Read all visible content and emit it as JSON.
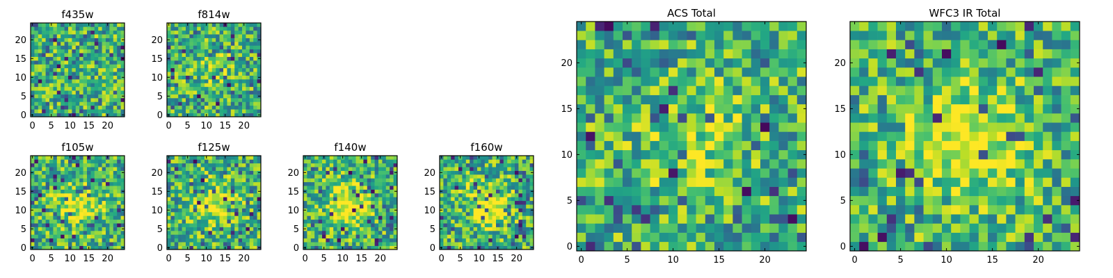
{
  "chart_data": [
    {
      "type": "heatmap",
      "title": "f435w",
      "x_ticks": [
        "0",
        "5",
        "10",
        "15",
        "20"
      ],
      "y_ticks": [
        "0",
        "5",
        "10",
        "15",
        "20"
      ],
      "xlim": [
        -0.5,
        24.5
      ],
      "ylim": [
        -0.5,
        24.5
      ],
      "grid_size": [
        25,
        25
      ],
      "colormap": "viridis",
      "seed": 11,
      "center_strength": 0.0
    },
    {
      "type": "heatmap",
      "title": "f814w",
      "x_ticks": [
        "0",
        "5",
        "10",
        "15",
        "20"
      ],
      "y_ticks": [
        "0",
        "5",
        "10",
        "15",
        "20"
      ],
      "xlim": [
        -0.5,
        24.5
      ],
      "ylim": [
        -0.5,
        24.5
      ],
      "grid_size": [
        25,
        25
      ],
      "colormap": "viridis",
      "seed": 23,
      "center_strength": 0.15
    },
    {
      "type": "heatmap",
      "title": "f105w",
      "x_ticks": [
        "0",
        "5",
        "10",
        "15",
        "20"
      ],
      "y_ticks": [
        "0",
        "5",
        "10",
        "15",
        "20"
      ],
      "xlim": [
        -0.5,
        24.5
      ],
      "ylim": [
        -0.5,
        24.5
      ],
      "grid_size": [
        25,
        25
      ],
      "colormap": "viridis",
      "seed": 37,
      "center_strength": 0.35
    },
    {
      "type": "heatmap",
      "title": "f125w",
      "x_ticks": [
        "0",
        "5",
        "10",
        "15",
        "20"
      ],
      "y_ticks": [
        "0",
        "5",
        "10",
        "15",
        "20"
      ],
      "xlim": [
        -0.5,
        24.5
      ],
      "ylim": [
        -0.5,
        24.5
      ],
      "grid_size": [
        25,
        25
      ],
      "colormap": "viridis",
      "seed": 41,
      "center_strength": 0.3
    },
    {
      "type": "heatmap",
      "title": "f140w",
      "x_ticks": [
        "0",
        "5",
        "10",
        "15",
        "20"
      ],
      "y_ticks": [
        "0",
        "5",
        "10",
        "15",
        "20"
      ],
      "xlim": [
        -0.5,
        24.5
      ],
      "ylim": [
        -0.5,
        24.5
      ],
      "grid_size": [
        25,
        25
      ],
      "colormap": "viridis",
      "seed": 53,
      "center_strength": 0.4
    },
    {
      "type": "heatmap",
      "title": "f160w",
      "x_ticks": [
        "0",
        "5",
        "10",
        "15",
        "20"
      ],
      "y_ticks": [
        "0",
        "5",
        "10",
        "15",
        "20"
      ],
      "xlim": [
        -0.5,
        24.5
      ],
      "ylim": [
        -0.5,
        24.5
      ],
      "grid_size": [
        25,
        25
      ],
      "colormap": "viridis",
      "seed": 67,
      "center_strength": 0.45
    },
    {
      "type": "heatmap",
      "title": "ACS Total",
      "x_ticks": [
        "0",
        "5",
        "10",
        "15",
        "20"
      ],
      "y_ticks": [
        "0",
        "5",
        "10",
        "15",
        "20"
      ],
      "xlim": [
        -0.5,
        24.5
      ],
      "ylim": [
        -0.5,
        24.5
      ],
      "grid_size": [
        25,
        25
      ],
      "colormap": "viridis",
      "seed": 79,
      "center_strength": 0.2
    },
    {
      "type": "heatmap",
      "title": "WFC3 IR Total",
      "x_ticks": [
        "0",
        "5",
        "10",
        "15",
        "20"
      ],
      "y_ticks": [
        "0",
        "5",
        "10",
        "15",
        "20"
      ],
      "xlim": [
        -0.5,
        24.5
      ],
      "ylim": [
        -0.5,
        24.5
      ],
      "grid_size": [
        25,
        25
      ],
      "colormap": "viridis",
      "seed": 97,
      "center_strength": 0.45
    }
  ]
}
